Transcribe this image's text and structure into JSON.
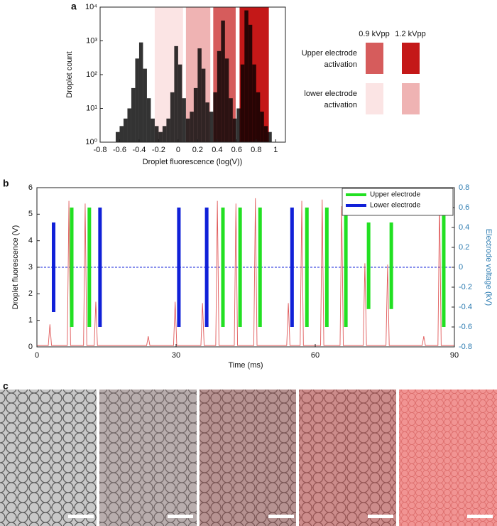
{
  "panel_labels": [
    "a",
    "b",
    "c"
  ],
  "chart_data": [
    {
      "type": "histogram",
      "xlabel": "Droplet fluorescence (log(V))",
      "ylabel": "Droplet count",
      "color": "#000000",
      "log_y": true,
      "bins": [
        -0.64,
        -0.6,
        -0.56,
        -0.52,
        -0.48,
        -0.44,
        -0.4,
        -0.36,
        -0.32,
        -0.28,
        -0.24,
        -0.2,
        -0.16,
        -0.12,
        -0.08,
        -0.04,
        0,
        0.04,
        0.08,
        0.12,
        0.16,
        0.2,
        0.24,
        0.28,
        0.32,
        0.36,
        0.4,
        0.44,
        0.48,
        0.52,
        0.56,
        0.6,
        0.64,
        0.68,
        0.72,
        0.76,
        0.8,
        0.84,
        0.88,
        0.92,
        0.96
      ],
      "values": [
        2,
        3,
        5,
        10,
        40,
        300,
        900,
        150,
        20,
        5,
        3,
        2,
        3,
        5,
        30,
        700,
        200,
        20,
        5,
        8,
        40,
        600,
        150,
        15,
        8,
        30,
        500,
        4000,
        300,
        20,
        5,
        10,
        200,
        8000,
        3000,
        200,
        30,
        8,
        3,
        2
      ],
      "bands": [
        {
          "range": [
            -0.24,
            0.05
          ],
          "color": "#fbe4e4"
        },
        {
          "range": [
            0.08,
            0.33
          ],
          "color": "#efb3b3"
        },
        {
          "range": [
            0.36,
            0.59
          ],
          "color": "#d65c5c"
        },
        {
          "range": [
            0.63,
            0.93
          ],
          "color": "#c41818"
        }
      ],
      "xlim": [
        -0.8,
        1.1
      ],
      "xticks": [
        -0.8,
        -0.6,
        -0.4,
        -0.2,
        0,
        0.2,
        0.4,
        0.6,
        0.8,
        1
      ],
      "ylim": [
        1,
        10000
      ],
      "yticks": [
        {
          "value": 1,
          "label": "10⁰"
        },
        {
          "value": 10,
          "label": "10¹"
        },
        {
          "value": 100,
          "label": "10²"
        },
        {
          "value": 1000,
          "label": "10³"
        },
        {
          "value": 10000,
          "label": "10⁴"
        }
      ],
      "legend": {
        "columns": [
          "0.9 kVpp",
          "1.2 kVpp"
        ],
        "rows": [
          {
            "label_lines": [
              "Upper electrode",
              "activation"
            ],
            "colors": [
              "#d65c5c",
              "#c41818"
            ]
          },
          {
            "label_lines": [
              "lower electrode",
              "activation"
            ],
            "colors": [
              "#fbe4e4",
              "#efb3b3"
            ]
          }
        ]
      }
    },
    {
      "type": "combo",
      "xlabel": "Time (ms)",
      "ylabel": "Droplet fluorescence (V)",
      "y2label": "Electrode voltage (kV)",
      "xlim": [
        0,
        90
      ],
      "xticks": [
        0,
        30,
        60,
        90
      ],
      "ylim": [
        0,
        6
      ],
      "yticks": [
        0,
        1,
        2,
        3,
        4,
        5,
        6
      ],
      "y2lim": [
        -0.8,
        0.8
      ],
      "y2ticks": [
        -0.8,
        -0.6,
        -0.4,
        -0.2,
        0,
        0.2,
        0.4,
        0.6,
        0.8
      ],
      "legend_position": "upper right",
      "series": [
        {
          "type": "line",
          "color": "#e05a5a",
          "x": [
            0,
            2.45,
            2.8,
            3.15,
            6.55,
            6.9,
            7.25,
            10.05,
            10.4,
            10.75,
            12.35,
            12.7,
            13.05,
            23.65,
            24,
            24.35,
            29.45,
            29.8,
            30.15,
            35.35,
            35.7,
            36.05,
            38.55,
            38.9,
            39.25,
            42.55,
            42.9,
            43.25,
            46.75,
            47.1,
            47.45,
            53.85,
            54.2,
            54.55,
            56.75,
            57.1,
            57.45,
            61.15,
            61.5,
            61.85,
            65.35,
            65.7,
            66.05,
            70.35,
            70.7,
            71.05,
            75.25,
            75.6,
            75.95,
            83.05,
            83.4,
            83.75,
            86.45,
            86.8,
            87.15,
            90
          ],
          "values": [
            0.05,
            0.05,
            0.85,
            0.05,
            0.05,
            5.5,
            0.05,
            0.05,
            5.4,
            0.05,
            0.05,
            1.7,
            0.05,
            0.05,
            0.4,
            0.05,
            0.05,
            1.7,
            0.05,
            0.05,
            1.65,
            0.05,
            0.05,
            5.5,
            0.05,
            0.05,
            5.4,
            0.05,
            0.05,
            5.6,
            0.05,
            0.05,
            1.65,
            0.05,
            0.05,
            5.5,
            0.05,
            0.05,
            5.55,
            0.05,
            0.05,
            5.3,
            0.05,
            0.05,
            3.15,
            0.05,
            0.05,
            3.1,
            0.05,
            0.05,
            0.4,
            0.05,
            0.05,
            5.5,
            0.05,
            0.05
          ]
        },
        {
          "type": "range-bar",
          "name": "Upper electrode",
          "axis": "y2",
          "color": "#22e022",
          "x": [
            7.5,
            11.3,
            40.1,
            43.8,
            48.1,
            58.2,
            62.5,
            66.6,
            71.5,
            76.4,
            87.7
          ],
          "values": [
            0.6,
            0.6,
            0.6,
            0.6,
            0.6,
            0.6,
            0.6,
            0.6,
            0.45,
            0.45,
            0.6
          ],
          "lows": [
            -0.6,
            -0.6,
            -0.6,
            -0.6,
            -0.6,
            -0.6,
            -0.6,
            -0.6,
            -0.42,
            -0.42,
            -0.6
          ]
        },
        {
          "type": "range-bar",
          "name": "Lower electrode",
          "axis": "y2",
          "color": "#1020d8",
          "x": [
            3.6,
            13.6,
            30.6,
            36.6,
            55.0
          ],
          "values": [
            0.45,
            0.6,
            0.6,
            0.6,
            0.6
          ],
          "lows": [
            -0.45,
            -0.6,
            -0.6,
            -0.6,
            -0.6
          ]
        }
      ]
    }
  ]
}
